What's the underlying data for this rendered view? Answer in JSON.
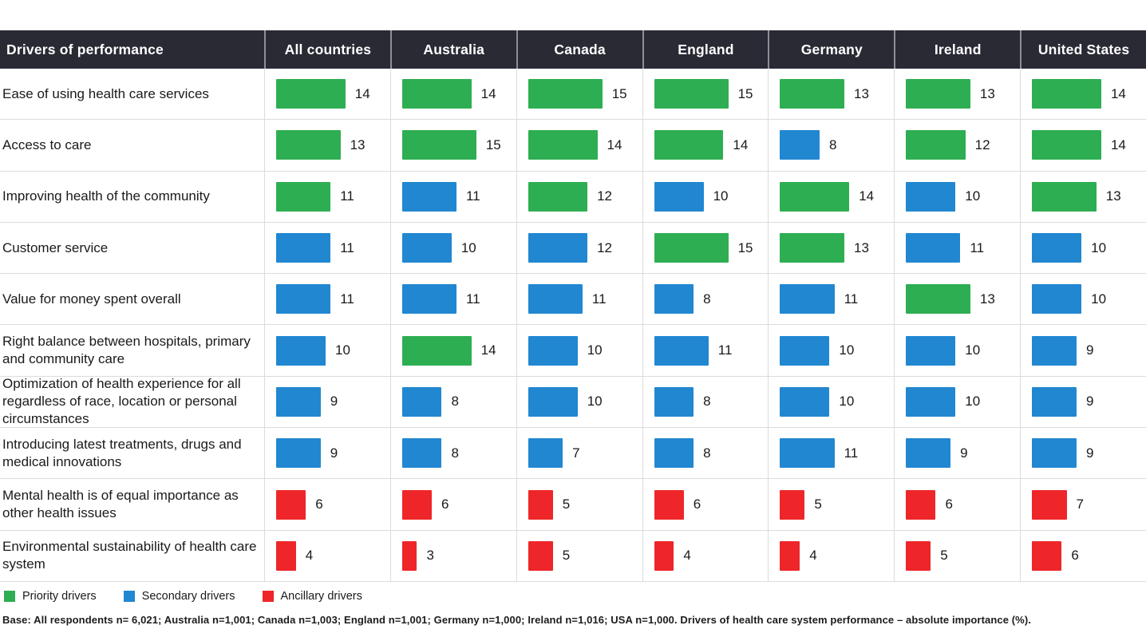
{
  "colors": {
    "priority": "#2eae52",
    "secondary": "#2187d1",
    "ancillary": "#ee2629",
    "header_bg": "#2a2a35",
    "grid_line": "#dcdcdf",
    "header_divider": "#8e8e96",
    "text": "#1a1a1a"
  },
  "chart_data": {
    "type": "bar",
    "title": "Drivers of health care system performance – absolute importance (%)",
    "xlabel": "",
    "ylabel": "Absolute importance (%)",
    "legend_position": "bottom",
    "grid": true,
    "columns": [
      "Drivers of performance",
      "All countries",
      "Australia",
      "Canada",
      "England",
      "Germany",
      "Ireland",
      "United States"
    ],
    "rows": [
      {
        "label": "Ease of using health care services",
        "cells": [
          {
            "value": 14,
            "tier": "priority"
          },
          {
            "value": 14,
            "tier": "priority"
          },
          {
            "value": 15,
            "tier": "priority"
          },
          {
            "value": 15,
            "tier": "priority"
          },
          {
            "value": 13,
            "tier": "priority"
          },
          {
            "value": 13,
            "tier": "priority"
          },
          {
            "value": 14,
            "tier": "priority"
          }
        ]
      },
      {
        "label": "Access to care",
        "cells": [
          {
            "value": 13,
            "tier": "priority"
          },
          {
            "value": 15,
            "tier": "priority"
          },
          {
            "value": 14,
            "tier": "priority"
          },
          {
            "value": 14,
            "tier": "priority"
          },
          {
            "value": 8,
            "tier": "secondary"
          },
          {
            "value": 12,
            "tier": "priority"
          },
          {
            "value": 14,
            "tier": "priority"
          }
        ]
      },
      {
        "label": "Improving health of the community",
        "cells": [
          {
            "value": 11,
            "tier": "priority"
          },
          {
            "value": 11,
            "tier": "secondary"
          },
          {
            "value": 12,
            "tier": "priority"
          },
          {
            "value": 10,
            "tier": "secondary"
          },
          {
            "value": 14,
            "tier": "priority"
          },
          {
            "value": 10,
            "tier": "secondary"
          },
          {
            "value": 13,
            "tier": "priority"
          }
        ]
      },
      {
        "label": "Customer service",
        "cells": [
          {
            "value": 11,
            "tier": "secondary"
          },
          {
            "value": 10,
            "tier": "secondary"
          },
          {
            "value": 12,
            "tier": "secondary"
          },
          {
            "value": 15,
            "tier": "priority"
          },
          {
            "value": 13,
            "tier": "priority"
          },
          {
            "value": 11,
            "tier": "secondary"
          },
          {
            "value": 10,
            "tier": "secondary"
          }
        ]
      },
      {
        "label": "Value for money spent overall",
        "cells": [
          {
            "value": 11,
            "tier": "secondary"
          },
          {
            "value": 11,
            "tier": "secondary"
          },
          {
            "value": 11,
            "tier": "secondary"
          },
          {
            "value": 8,
            "tier": "secondary"
          },
          {
            "value": 11,
            "tier": "secondary"
          },
          {
            "value": 13,
            "tier": "priority"
          },
          {
            "value": 10,
            "tier": "secondary"
          }
        ]
      },
      {
        "label": "Right balance between hospitals, primary and community care",
        "cells": [
          {
            "value": 10,
            "tier": "secondary"
          },
          {
            "value": 14,
            "tier": "priority"
          },
          {
            "value": 10,
            "tier": "secondary"
          },
          {
            "value": 11,
            "tier": "secondary"
          },
          {
            "value": 10,
            "tier": "secondary"
          },
          {
            "value": 10,
            "tier": "secondary"
          },
          {
            "value": 9,
            "tier": "secondary"
          }
        ]
      },
      {
        "label": "Optimization of health experience for all regardless of race, location or personal circumstances",
        "cells": [
          {
            "value": 9,
            "tier": "secondary"
          },
          {
            "value": 8,
            "tier": "secondary"
          },
          {
            "value": 10,
            "tier": "secondary"
          },
          {
            "value": 8,
            "tier": "secondary"
          },
          {
            "value": 10,
            "tier": "secondary"
          },
          {
            "value": 10,
            "tier": "secondary"
          },
          {
            "value": 9,
            "tier": "secondary"
          }
        ]
      },
      {
        "label": "Introducing latest treatments, drugs and medical innovations",
        "cells": [
          {
            "value": 9,
            "tier": "secondary"
          },
          {
            "value": 8,
            "tier": "secondary"
          },
          {
            "value": 7,
            "tier": "secondary"
          },
          {
            "value": 8,
            "tier": "secondary"
          },
          {
            "value": 11,
            "tier": "secondary"
          },
          {
            "value": 9,
            "tier": "secondary"
          },
          {
            "value": 9,
            "tier": "secondary"
          }
        ]
      },
      {
        "label": "Mental health is of equal importance as other health issues",
        "cells": [
          {
            "value": 6,
            "tier": "ancillary"
          },
          {
            "value": 6,
            "tier": "ancillary"
          },
          {
            "value": 5,
            "tier": "ancillary"
          },
          {
            "value": 6,
            "tier": "ancillary"
          },
          {
            "value": 5,
            "tier": "ancillary"
          },
          {
            "value": 6,
            "tier": "ancillary"
          },
          {
            "value": 7,
            "tier": "ancillary"
          }
        ]
      },
      {
        "label": "Environmental sustainability of health care system",
        "cells": [
          {
            "value": 4,
            "tier": "ancillary"
          },
          {
            "value": 3,
            "tier": "ancillary"
          },
          {
            "value": 5,
            "tier": "ancillary"
          },
          {
            "value": 4,
            "tier": "ancillary"
          },
          {
            "value": 4,
            "tier": "ancillary"
          },
          {
            "value": 5,
            "tier": "ancillary"
          },
          {
            "value": 6,
            "tier": "ancillary"
          }
        ]
      }
    ]
  },
  "legend": {
    "items": [
      {
        "label": "Priority drivers",
        "tier": "priority"
      },
      {
        "label": "Secondary drivers",
        "tier": "secondary"
      },
      {
        "label": "Ancillary drivers",
        "tier": "ancillary"
      }
    ]
  },
  "footer": {
    "text": "Base: All respondents n= 6,021; Australia n=1,001; Canada n=1,003; England n=1,001; Germany n=1,000; Ireland n=1,016; USA n=1,000. Drivers of health care system performance – absolute importance (%)."
  }
}
